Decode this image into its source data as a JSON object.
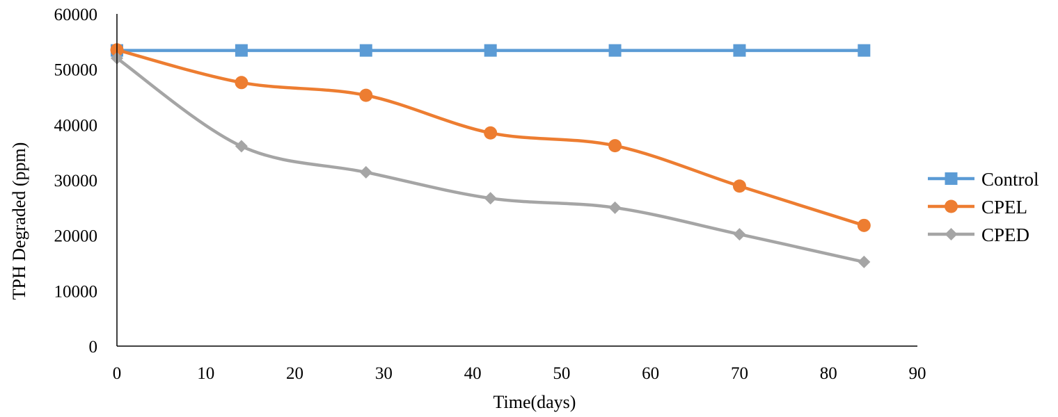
{
  "chart_data": {
    "type": "line",
    "title": "",
    "xlabel": "Time(days)",
    "ylabel": "TPH Degraded (ppm)",
    "xlim": [
      0,
      90
    ],
    "ylim": [
      0,
      60000
    ],
    "x_ticks": [
      0,
      10,
      20,
      30,
      40,
      50,
      60,
      70,
      80,
      90
    ],
    "y_ticks": [
      0,
      10000,
      20000,
      30000,
      40000,
      50000,
      60000
    ],
    "grid": false,
    "legend_position": "right",
    "x": [
      0,
      14,
      28,
      42,
      56,
      70,
      84
    ],
    "series": [
      {
        "name": "Control",
        "color": "#5B9BD5",
        "marker": "square",
        "values": [
          53400,
          53400,
          53400,
          53400,
          53400,
          53400,
          53400
        ]
      },
      {
        "name": "CPEL",
        "color": "#ED7D31",
        "marker": "circle",
        "values": [
          53500,
          47600,
          45300,
          38500,
          36200,
          28900,
          21800
        ]
      },
      {
        "name": "CPED",
        "color": "#A5A5A5",
        "marker": "diamond",
        "values": [
          52000,
          36100,
          31400,
          26700,
          25000,
          20200,
          15200
        ]
      }
    ]
  }
}
